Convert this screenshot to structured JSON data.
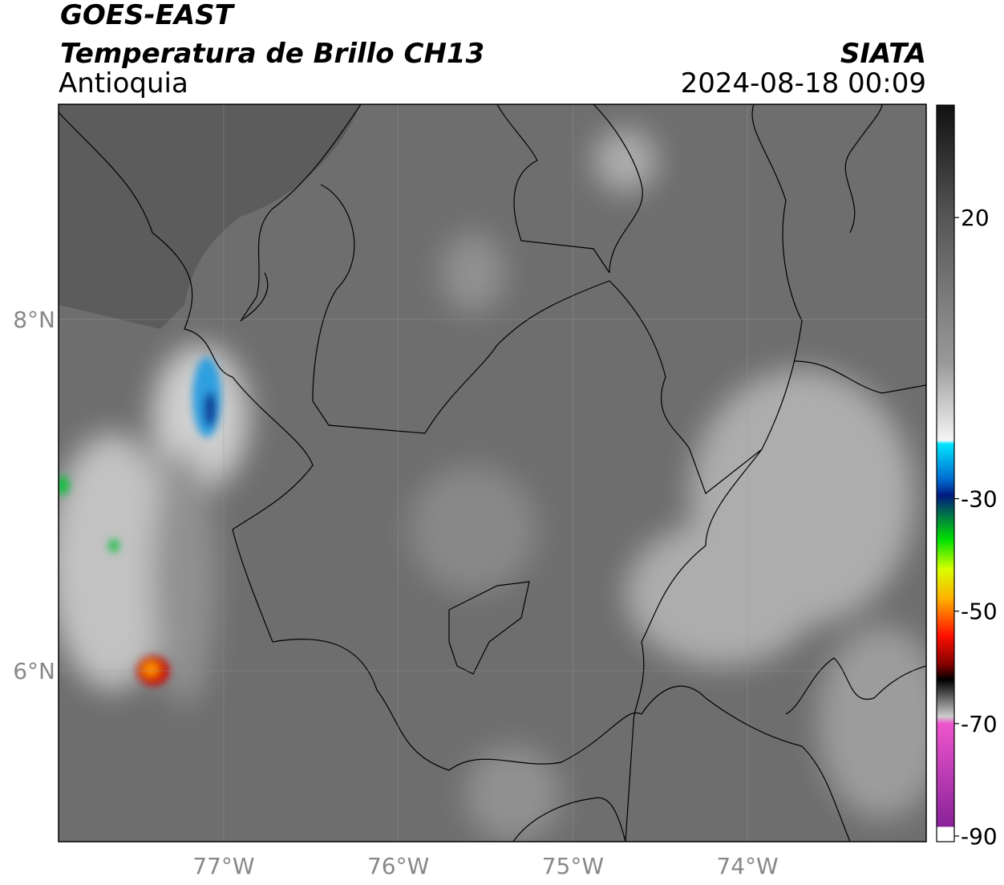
{
  "header": {
    "title": "GOES-EAST",
    "subtitle": "Temperatura de Brillo CH13",
    "region": "Antioquia",
    "source": "SIATA",
    "timestamp": "2024-08-18 00:09"
  },
  "map": {
    "xlim": [
      -77.946,
      -72.976
    ],
    "ylim": [
      5.027,
      9.224
    ],
    "xticks": [
      {
        "value": -77,
        "label": "77°W"
      },
      {
        "value": -76,
        "label": "76°W"
      },
      {
        "value": -75,
        "label": "75°W"
      },
      {
        "value": -74,
        "label": "74°W"
      }
    ],
    "yticks": [
      {
        "value": 6,
        "label": "6°N"
      },
      {
        "value": 8,
        "label": "8°N"
      }
    ],
    "grid": true
  },
  "colorbar": {
    "lim": [
      -91,
      40
    ],
    "ticks": [
      20,
      -30,
      -50,
      -70,
      -90
    ]
  }
}
